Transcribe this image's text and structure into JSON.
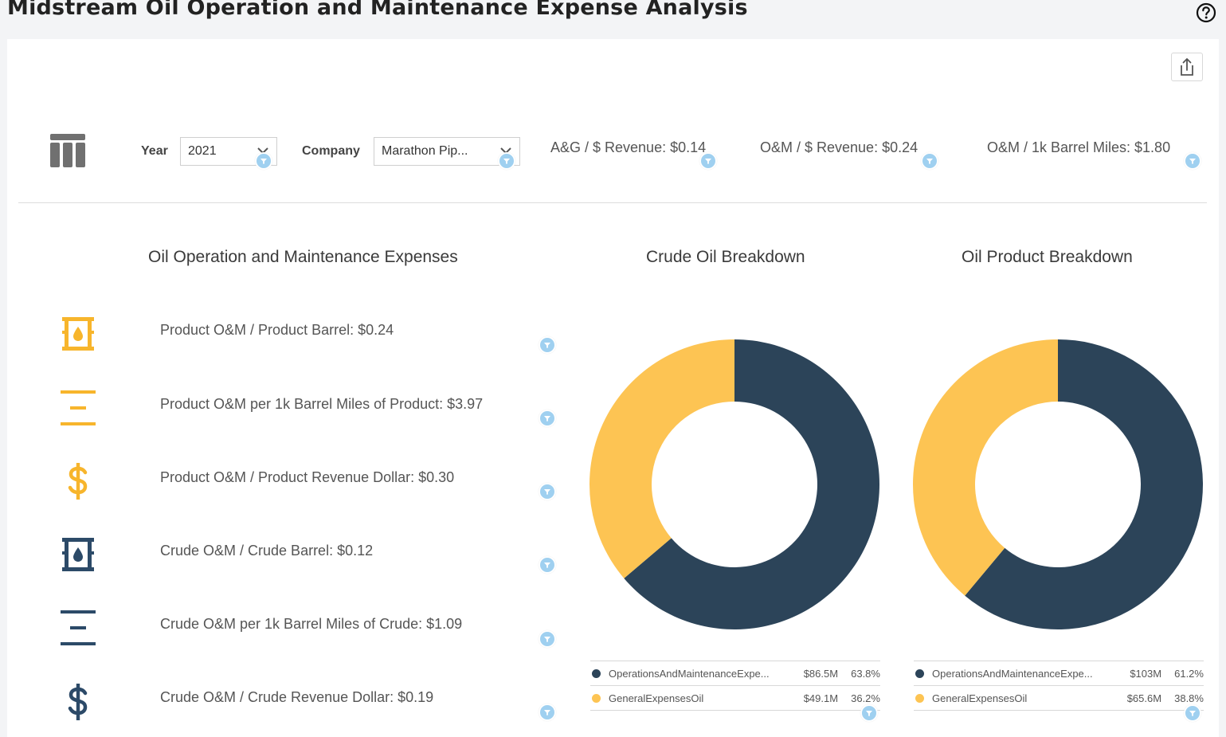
{
  "header": {
    "title": "Midstream Oil Operation and Maintenance Expense Analysis",
    "help_icon": "help-circle-icon",
    "share_icon": "share-icon"
  },
  "filters": {
    "year_label": "Year",
    "year_value": "2021",
    "company_label": "Company",
    "company_value": "Marathon Pip..."
  },
  "top_kpis": [
    {
      "label": "A&G / $ Revenue: $0.14"
    },
    {
      "label": "O&M / $ Revenue: $0.24"
    },
    {
      "label": "O&M / 1k Barrel Miles: $1.80"
    }
  ],
  "expenses": {
    "title": "Oil Operation and Maintenance Expenses",
    "items": [
      {
        "label": "Product O&M / Product Barrel: $0.24",
        "icon": "oil-barrel-icon",
        "color": "#f7b52c"
      },
      {
        "label": "Product O&M per 1k Barrel Miles of Product: $3.97",
        "icon": "distance-icon",
        "color": "#f7b52c"
      },
      {
        "label": "Product O&M / Product Revenue Dollar: $0.30",
        "icon": "dollar-icon",
        "color": "#f7b52c"
      },
      {
        "label": "Crude O&M / Crude Barrel: $0.12",
        "icon": "oil-barrel-icon",
        "color": "#2c4a68"
      },
      {
        "label": "Crude O&M per 1k Barrel Miles of Crude: $1.09",
        "icon": "distance-icon",
        "color": "#2c4a68"
      },
      {
        "label": "Crude O&M / Crude Revenue Dollar: $0.19",
        "icon": "dollar-icon",
        "color": "#2c4a68"
      }
    ]
  },
  "colors": {
    "navy": "#2c4459",
    "yellow": "#fdc453",
    "filter": "#9fd0f0"
  },
  "chart_data": [
    {
      "type": "pie",
      "title": "Crude Oil Breakdown",
      "categories": [
        "OperationsAndMaintenanceExpe...",
        "GeneralExpensesOil"
      ],
      "values": [
        86.5,
        49.1
      ],
      "value_labels": [
        "$86.5M",
        "$49.1M"
      ],
      "percent_labels": [
        "63.8%",
        "36.2%"
      ],
      "colors": [
        "#2c4459",
        "#fdc453"
      ]
    },
    {
      "type": "pie",
      "title": "Oil Product Breakdown",
      "categories": [
        "OperationsAndMaintenanceExpe...",
        "GeneralExpensesOil"
      ],
      "values": [
        103,
        65.6
      ],
      "value_labels": [
        "$103M",
        "$65.6M"
      ],
      "percent_labels": [
        "61.2%",
        "38.8%"
      ],
      "colors": [
        "#2c4459",
        "#fdc453"
      ]
    }
  ]
}
